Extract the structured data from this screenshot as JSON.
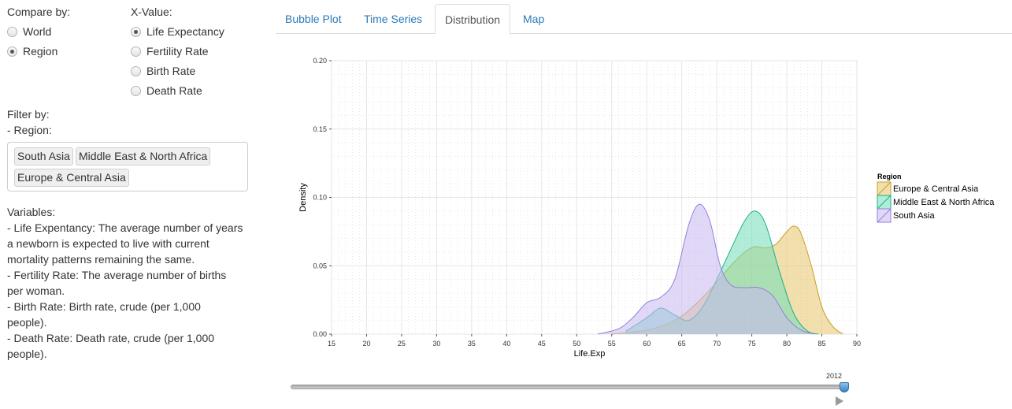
{
  "sidebar": {
    "compare_label": "Compare by:",
    "compare_options": [
      {
        "label": "World",
        "selected": false
      },
      {
        "label": "Region",
        "selected": true
      }
    ],
    "xvalue_label": "X-Value:",
    "xvalue_options": [
      {
        "label": "Life Expectancy",
        "selected": true
      },
      {
        "label": "Fertility Rate",
        "selected": false
      },
      {
        "label": "Birth Rate",
        "selected": false
      },
      {
        "label": "Death Rate",
        "selected": false
      }
    ],
    "filter_label": "Filter by:",
    "region_label": "- Region:",
    "region_tags": [
      "South Asia",
      "Middle East & North Africa",
      "Europe & Central Asia"
    ],
    "variables_lines": [
      "Variables:",
      "- Life Expentancy: The average number of years",
      "a newborn is expected to live with current",
      "mortality patterns remaining the same.",
      "- Fertility Rate: The average number of births",
      "per woman.",
      "- Birth Rate: Birth rate, crude (per 1,000",
      "people).",
      "- Death Rate: Death rate, crude (per 1,000",
      "people)."
    ]
  },
  "tabs": [
    {
      "label": "Bubble Plot",
      "active": false
    },
    {
      "label": "Time Series",
      "active": false
    },
    {
      "label": "Distribution",
      "active": true
    },
    {
      "label": "Map",
      "active": false
    }
  ],
  "slider": {
    "value": "2012"
  },
  "chart_data": {
    "type": "area",
    "xlabel": "Life.Exp",
    "ylabel": "Density",
    "xlim": [
      15,
      90
    ],
    "ylim": [
      0,
      0.2
    ],
    "x_ticks": [
      15,
      20,
      25,
      30,
      35,
      40,
      45,
      50,
      55,
      60,
      65,
      70,
      75,
      80,
      85,
      90
    ],
    "y_ticks": [
      "0.00",
      "0.05",
      "0.10",
      "0.15",
      "0.20"
    ],
    "grid": true,
    "legend_title": "Region",
    "legend_position": "right",
    "series": [
      {
        "name": "Europe & Central Asia",
        "fill": "#e6c56c",
        "stroke": "#c9a020",
        "x": [
          55,
          60,
          64,
          67,
          70,
          72,
          74,
          75.5,
          77,
          78.5,
          80,
          81,
          82,
          83.5,
          85,
          86.5,
          88
        ],
        "y": [
          0.0,
          0.003,
          0.01,
          0.022,
          0.038,
          0.05,
          0.06,
          0.064,
          0.063,
          0.066,
          0.075,
          0.079,
          0.074,
          0.05,
          0.02,
          0.006,
          0.0
        ]
      },
      {
        "name": "Middle East & North Africa",
        "fill": "#6fddb8",
        "stroke": "#1eb08a",
        "x": [
          57,
          60,
          62,
          64,
          66,
          68,
          70,
          72,
          74,
          75.5,
          77,
          79,
          81,
          83,
          84.5
        ],
        "y": [
          0.002,
          0.012,
          0.019,
          0.014,
          0.01,
          0.02,
          0.04,
          0.062,
          0.083,
          0.09,
          0.08,
          0.045,
          0.015,
          0.002,
          0.0
        ]
      },
      {
        "name": "South Asia",
        "fill": "#c8b8f2",
        "stroke": "#9580d6",
        "x": [
          53,
          56,
          58,
          60,
          62,
          64,
          66,
          67.5,
          69,
          70.5,
          72,
          74,
          76,
          78,
          80,
          82,
          84
        ],
        "y": [
          0.0,
          0.004,
          0.012,
          0.023,
          0.027,
          0.04,
          0.08,
          0.095,
          0.083,
          0.05,
          0.036,
          0.034,
          0.034,
          0.028,
          0.012,
          0.003,
          0.0
        ]
      }
    ]
  }
}
